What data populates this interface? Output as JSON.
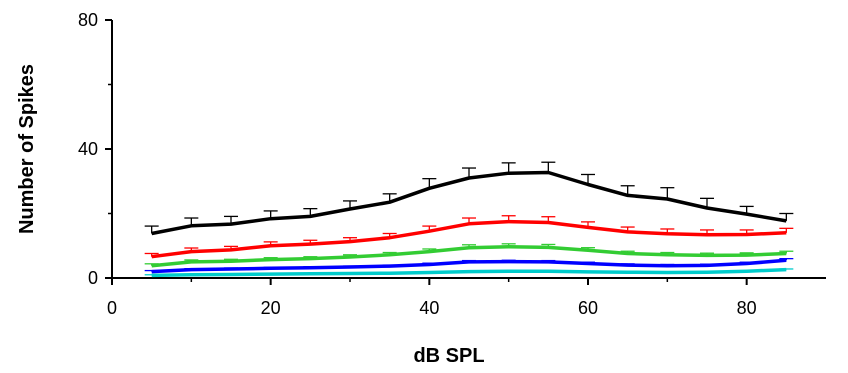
{
  "chart_data": {
    "type": "line",
    "xlabel": "dB SPL",
    "ylabel": "Number of Spikes",
    "xlim": [
      0,
      90
    ],
    "ylim": [
      0,
      80
    ],
    "x_ticks": [
      0,
      20,
      40,
      60,
      80
    ],
    "y_ticks": [
      0,
      40,
      80
    ],
    "x_tick_labels": [
      "0",
      "20",
      "40",
      "60",
      "80"
    ],
    "y_tick_labels": [
      "0",
      "40",
      "80"
    ],
    "grid": false,
    "x": [
      5,
      10,
      15,
      20,
      25,
      30,
      35,
      40,
      45,
      50,
      55,
      60,
      65,
      70,
      75,
      80,
      85
    ],
    "series": [
      {
        "color": "#000000",
        "values": [
          13.8,
          16.2,
          16.7,
          18.4,
          19.1,
          21.4,
          23.5,
          27.8,
          31.0,
          32.5,
          32.7,
          29.0,
          25.6,
          24.5,
          21.7,
          19.8,
          17.7
        ],
        "errors": [
          2.3,
          2.4,
          2.4,
          2.4,
          2.4,
          2.5,
          2.6,
          3.0,
          3.1,
          3.2,
          3.2,
          3.1,
          3.0,
          3.5,
          3.0,
          2.4,
          2.3
        ]
      },
      {
        "color": "#ff0000",
        "values": [
          6.6,
          8.2,
          8.7,
          10.0,
          10.5,
          11.3,
          12.5,
          14.5,
          16.8,
          17.5,
          17.2,
          15.7,
          14.3,
          13.7,
          13.4,
          13.5,
          14.0
        ],
        "errors": [
          1.0,
          1.1,
          1.1,
          1.2,
          1.2,
          1.2,
          1.3,
          1.6,
          1.8,
          1.8,
          1.8,
          1.7,
          1.5,
          1.5,
          1.5,
          1.4,
          1.4
        ]
      },
      {
        "color": "#33cc33",
        "values": [
          3.8,
          5.0,
          5.2,
          5.7,
          6.0,
          6.5,
          7.2,
          8.2,
          9.4,
          9.7,
          9.5,
          8.6,
          7.6,
          7.2,
          7.0,
          7.1,
          7.6
        ],
        "errors": [
          0.6,
          0.6,
          0.6,
          0.6,
          0.6,
          0.7,
          0.7,
          0.8,
          0.9,
          0.9,
          0.9,
          0.8,
          0.7,
          0.7,
          0.7,
          0.7,
          0.7
        ]
      },
      {
        "color": "#0000ff",
        "values": [
          2.0,
          2.6,
          2.8,
          3.0,
          3.2,
          3.4,
          3.7,
          4.2,
          5.0,
          5.1,
          5.0,
          4.5,
          4.0,
          3.8,
          3.9,
          4.5,
          5.5
        ],
        "errors": [
          0.3,
          0.3,
          0.3,
          0.3,
          0.3,
          0.3,
          0.3,
          0.4,
          0.4,
          0.4,
          0.4,
          0.4,
          0.4,
          0.4,
          0.4,
          0.4,
          0.5
        ]
      },
      {
        "color": "#00cccc",
        "values": [
          0.8,
          1.0,
          1.1,
          1.2,
          1.3,
          1.4,
          1.5,
          1.7,
          2.0,
          2.1,
          2.1,
          1.9,
          1.8,
          1.7,
          1.8,
          2.1,
          2.6
        ],
        "errors": [
          0.2,
          0.2,
          0.2,
          0.2,
          0.2,
          0.2,
          0.2,
          0.2,
          0.2,
          0.2,
          0.2,
          0.2,
          0.2,
          0.2,
          0.2,
          0.2,
          0.2
        ]
      }
    ]
  }
}
